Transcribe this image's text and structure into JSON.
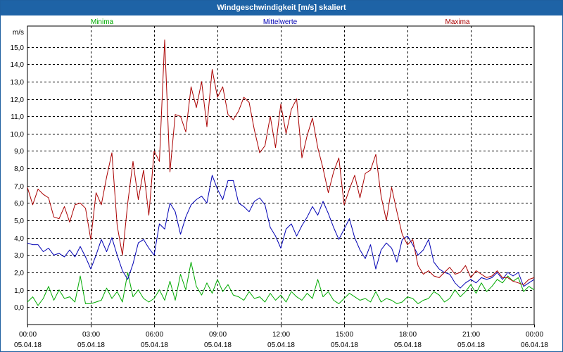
{
  "chart_data": {
    "type": "line",
    "title": "Windgeschwindigkeit [m/s] skaliert",
    "ylabel": "m/s",
    "ylim": [
      -1.0,
      16.2
    ],
    "yticks": [
      0.0,
      1.0,
      2.0,
      3.0,
      4.0,
      5.0,
      6.0,
      7.0,
      8.0,
      9.0,
      10.0,
      11.0,
      12.0,
      13.0,
      14.0,
      15.0
    ],
    "ytick_labels": [
      "0,0",
      "1,0",
      "2,0",
      "3,0",
      "4,0",
      "5,0",
      "6,0",
      "7,0",
      "8,0",
      "9,0",
      "10,0",
      "11,0",
      "12,0",
      "13,0",
      "14,0",
      "15,0"
    ],
    "xlim": [
      0,
      24
    ],
    "xticks": [
      {
        "h": 0,
        "time": "00:00",
        "date": "05.04.18"
      },
      {
        "h": 3,
        "time": "03:00",
        "date": "05.04.18"
      },
      {
        "h": 6,
        "time": "06:00",
        "date": "05.04.18"
      },
      {
        "h": 9,
        "time": "09:00",
        "date": "05.04.18"
      },
      {
        "h": 12,
        "time": "12:00",
        "date": "05.04.18"
      },
      {
        "h": 15,
        "time": "15:00",
        "date": "05.04.18"
      },
      {
        "h": 18,
        "time": "18:00",
        "date": "05.04.18"
      },
      {
        "h": 21,
        "time": "21:00",
        "date": "05.04.18"
      },
      {
        "h": 24,
        "time": "00:00",
        "date": "06.04.18"
      }
    ],
    "grid": true,
    "series": [
      {
        "name": "Minima",
        "color": "#00aa00",
        "legend_pos": "left",
        "x": [
          0,
          0.25,
          0.5,
          0.75,
          1,
          1.25,
          1.5,
          1.75,
          2,
          2.25,
          2.5,
          2.75,
          3,
          3.25,
          3.5,
          3.75,
          4,
          4.25,
          4.5,
          4.75,
          5,
          5.25,
          5.5,
          5.75,
          6,
          6.25,
          6.5,
          6.75,
          7,
          7.25,
          7.5,
          7.75,
          8,
          8.25,
          8.5,
          8.75,
          9,
          9.25,
          9.5,
          9.75,
          10,
          10.25,
          10.5,
          10.75,
          11,
          11.25,
          11.5,
          11.75,
          12,
          12.25,
          12.5,
          12.75,
          13,
          13.25,
          13.5,
          13.75,
          14,
          14.25,
          14.5,
          14.75,
          15,
          15.25,
          15.5,
          15.75,
          16,
          16.25,
          16.5,
          16.75,
          17,
          17.25,
          17.5,
          17.75,
          18,
          18.25,
          18.5,
          18.75,
          19,
          19.25,
          19.5,
          19.75,
          20,
          20.25,
          20.5,
          20.75,
          21,
          21.25,
          21.5,
          21.75,
          22,
          22.25,
          22.5,
          22.75,
          23,
          23.25,
          23.5,
          23.75,
          24
        ],
        "values": [
          0.3,
          0.6,
          0.1,
          0.5,
          1.2,
          0.4,
          1.0,
          0.5,
          0.6,
          0.3,
          1.8,
          0.2,
          0.2,
          0.3,
          0.4,
          1.1,
          0.5,
          0.9,
          0.3,
          2.0,
          0.6,
          1.0,
          0.5,
          0.3,
          0.5,
          1.0,
          0.4,
          1.5,
          0.4,
          1.9,
          1.0,
          2.6,
          1.2,
          0.7,
          1.4,
          0.8,
          1.6,
          0.9,
          1.3,
          0.7,
          0.6,
          0.4,
          0.9,
          0.5,
          0.6,
          0.3,
          0.8,
          0.4,
          0.7,
          0.3,
          0.9,
          0.6,
          0.4,
          0.8,
          0.5,
          1.6,
          0.6,
          0.9,
          0.4,
          0.2,
          0.5,
          0.8,
          0.6,
          0.4,
          0.5,
          0.3,
          0.9,
          0.3,
          0.5,
          0.4,
          0.2,
          0.3,
          0.6,
          0.5,
          0.2,
          0.4,
          0.5,
          0.9,
          0.7,
          0.3,
          0.5,
          1.0,
          0.6,
          0.9,
          1.3,
          0.8,
          1.4,
          0.9,
          1.2,
          1.6,
          1.4,
          1.8,
          1.5,
          1.7,
          0.9,
          1.2,
          1.0
        ]
      },
      {
        "name": "Mittelwerte",
        "color": "#0000b4",
        "legend_pos": "center",
        "x": [
          0,
          0.25,
          0.5,
          0.75,
          1,
          1.25,
          1.5,
          1.75,
          2,
          2.25,
          2.5,
          2.75,
          3,
          3.25,
          3.5,
          3.75,
          4,
          4.25,
          4.5,
          4.75,
          5,
          5.25,
          5.5,
          5.75,
          6,
          6.25,
          6.5,
          6.75,
          7,
          7.25,
          7.5,
          7.75,
          8,
          8.25,
          8.5,
          8.75,
          9,
          9.25,
          9.5,
          9.75,
          10,
          10.25,
          10.5,
          10.75,
          11,
          11.25,
          11.5,
          11.75,
          12,
          12.25,
          12.5,
          12.75,
          13,
          13.25,
          13.5,
          13.75,
          14,
          14.25,
          14.5,
          14.75,
          15,
          15.25,
          15.5,
          15.75,
          16,
          16.25,
          16.5,
          16.75,
          17,
          17.25,
          17.5,
          17.75,
          18,
          18.25,
          18.5,
          18.75,
          19,
          19.25,
          19.5,
          19.75,
          20,
          20.25,
          20.5,
          20.75,
          21,
          21.25,
          21.5,
          21.75,
          22,
          22.25,
          22.5,
          22.75,
          23,
          23.25,
          23.5,
          23.75,
          24
        ],
        "values": [
          3.7,
          3.6,
          3.6,
          3.2,
          3.4,
          3.0,
          3.1,
          2.9,
          3.3,
          2.9,
          3.5,
          2.9,
          2.2,
          3.0,
          3.9,
          3.2,
          4.0,
          3.0,
          2.1,
          1.6,
          2.5,
          3.7,
          3.9,
          3.4,
          3.0,
          4.8,
          4.5,
          6.0,
          5.5,
          4.2,
          5.2,
          5.9,
          6.2,
          6.4,
          6.0,
          7.6,
          6.8,
          6.2,
          7.3,
          7.3,
          6.0,
          5.8,
          5.5,
          6.1,
          6.3,
          5.9,
          4.6,
          4.1,
          3.4,
          4.5,
          4.8,
          4.1,
          4.7,
          5.2,
          5.8,
          5.3,
          6.1,
          5.4,
          4.6,
          3.9,
          4.5,
          5.1,
          4.0,
          3.3,
          2.8,
          3.6,
          2.2,
          3.3,
          3.7,
          3.4,
          2.6,
          3.9,
          4.1,
          3.6,
          3.0,
          3.3,
          3.9,
          2.6,
          2.2,
          2.0,
          1.9,
          1.4,
          1.1,
          1.4,
          1.6,
          1.4,
          1.7,
          1.6,
          1.7,
          2.0,
          1.6,
          2.0,
          1.8,
          2.0,
          1.2,
          1.4,
          1.6
        ]
      },
      {
        "name": "Maxima",
        "color": "#aa0000",
        "legend_pos": "right",
        "x": [
          0,
          0.25,
          0.5,
          0.75,
          1,
          1.25,
          1.5,
          1.75,
          2,
          2.25,
          2.5,
          2.75,
          3,
          3.25,
          3.5,
          3.75,
          4,
          4.25,
          4.5,
          4.75,
          5,
          5.25,
          5.5,
          5.75,
          6,
          6.25,
          6.5,
          6.75,
          7,
          7.25,
          7.5,
          7.75,
          8,
          8.25,
          8.5,
          8.75,
          9,
          9.25,
          9.5,
          9.75,
          10,
          10.25,
          10.5,
          10.75,
          11,
          11.25,
          11.5,
          11.75,
          12,
          12.25,
          12.5,
          12.75,
          13,
          13.25,
          13.5,
          13.75,
          14,
          14.25,
          14.5,
          14.75,
          15,
          15.25,
          15.5,
          15.75,
          16,
          16.25,
          16.5,
          16.75,
          17,
          17.25,
          17.5,
          17.75,
          18,
          18.25,
          18.5,
          18.75,
          19,
          19.25,
          19.5,
          19.75,
          20,
          20.25,
          20.5,
          20.75,
          21,
          21.25,
          21.5,
          21.75,
          22,
          22.25,
          22.5,
          22.75,
          23,
          23.25,
          23.5,
          23.75,
          24
        ],
        "values": [
          6.9,
          5.9,
          6.8,
          6.5,
          6.3,
          5.2,
          5.1,
          5.8,
          4.9,
          5.9,
          6.0,
          5.7,
          3.9,
          6.6,
          5.9,
          7.5,
          8.9,
          4.7,
          3.0,
          6.0,
          8.4,
          6.2,
          7.9,
          5.3,
          9.0,
          8.4,
          15.4,
          7.8,
          11.1,
          11.0,
          10.1,
          12.7,
          11.5,
          13.0,
          10.4,
          13.7,
          12.1,
          12.7,
          11.1,
          10.8,
          11.3,
          12.1,
          11.8,
          10.2,
          8.9,
          9.3,
          11.0,
          9.2,
          11.7,
          10.0,
          11.4,
          12.0,
          8.6,
          9.9,
          10.9,
          9.2,
          8.0,
          6.6,
          7.8,
          8.6,
          5.9,
          6.8,
          7.6,
          6.3,
          7.7,
          7.9,
          8.8,
          6.4,
          5.0,
          6.9,
          5.5,
          4.2,
          3.6,
          3.9,
          2.4,
          1.9,
          2.1,
          1.8,
          1.7,
          2.0,
          2.3,
          1.9,
          2.0,
          2.4,
          1.7,
          2.1,
          1.9,
          1.7,
          1.8,
          2.1,
          1.7,
          1.7,
          1.5,
          1.4,
          1.3,
          1.6,
          1.7
        ]
      }
    ]
  }
}
